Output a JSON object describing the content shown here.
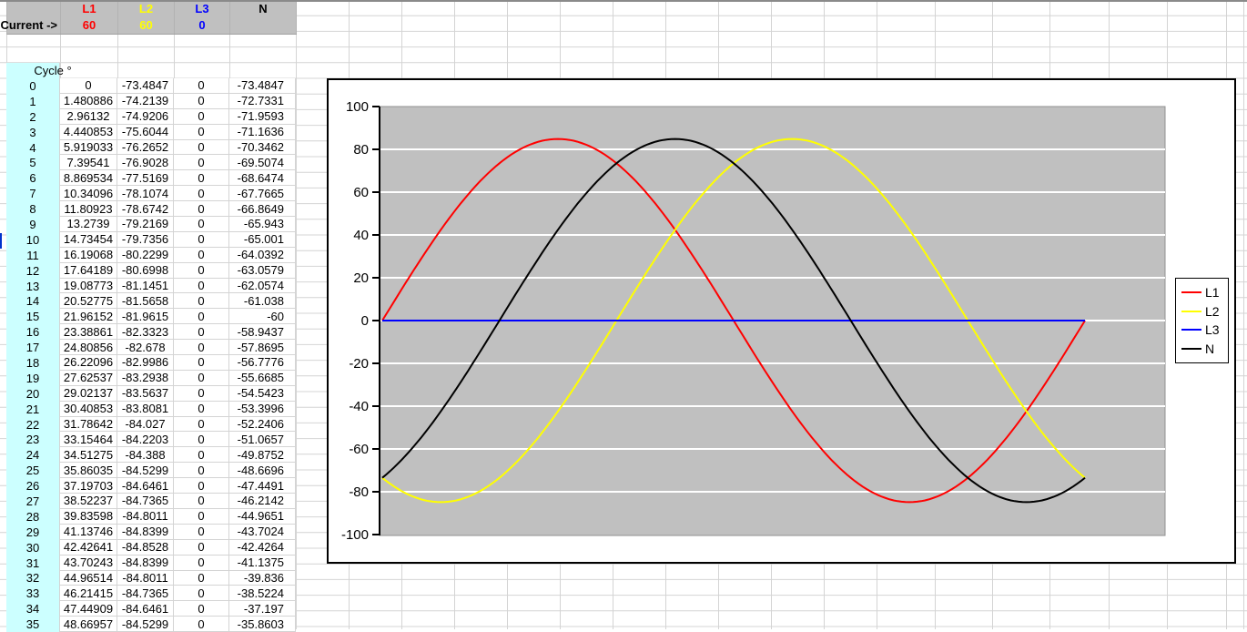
{
  "colors": {
    "header_bg": "#C0C0C0",
    "cycle_bg": "#CCFFFF",
    "grid_line": "#d4d4d4",
    "plot_bg": "#C0C0C0",
    "plot_gridline": "#ffffff"
  },
  "header": {
    "current_label": "Current ->",
    "phases": [
      {
        "label": "L1",
        "value": "60",
        "color": "#FF0000"
      },
      {
        "label": "L2",
        "value": "60",
        "color": "#FFFF00"
      },
      {
        "label": "L3",
        "value": "0",
        "color": "#0000FF"
      },
      {
        "label": "N",
        "value": "",
        "color": "#000000"
      }
    ]
  },
  "table": {
    "cycle_header": "Cycle °",
    "columns": [
      "Cycle °",
      "L1",
      "L2",
      "L3",
      "N"
    ],
    "rows": [
      [
        "0",
        "0",
        "-73.4847",
        "0",
        "-73.4847"
      ],
      [
        "1",
        "1.480886",
        "-74.2139",
        "0",
        "-72.7331"
      ],
      [
        "2",
        "2.96132",
        "-74.9206",
        "0",
        "-71.9593"
      ],
      [
        "3",
        "4.440853",
        "-75.6044",
        "0",
        "-71.1636"
      ],
      [
        "4",
        "5.919033",
        "-76.2652",
        "0",
        "-70.3462"
      ],
      [
        "5",
        "7.39541",
        "-76.9028",
        "0",
        "-69.5074"
      ],
      [
        "6",
        "8.869534",
        "-77.5169",
        "0",
        "-68.6474"
      ],
      [
        "7",
        "10.34096",
        "-78.1074",
        "0",
        "-67.7665"
      ],
      [
        "8",
        "11.80923",
        "-78.6742",
        "0",
        "-66.8649"
      ],
      [
        "9",
        "13.2739",
        "-79.2169",
        "0",
        "-65.943"
      ],
      [
        "10",
        "14.73454",
        "-79.7356",
        "0",
        "-65.001"
      ],
      [
        "11",
        "16.19068",
        "-80.2299",
        "0",
        "-64.0392"
      ],
      [
        "12",
        "17.64189",
        "-80.6998",
        "0",
        "-63.0579"
      ],
      [
        "13",
        "19.08773",
        "-81.1451",
        "0",
        "-62.0574"
      ],
      [
        "14",
        "20.52775",
        "-81.5658",
        "0",
        "-61.038"
      ],
      [
        "15",
        "21.96152",
        "-81.9615",
        "0",
        "-60"
      ],
      [
        "16",
        "23.38861",
        "-82.3323",
        "0",
        "-58.9437"
      ],
      [
        "17",
        "24.80856",
        "-82.678",
        "0",
        "-57.8695"
      ],
      [
        "18",
        "26.22096",
        "-82.9986",
        "0",
        "-56.7776"
      ],
      [
        "19",
        "27.62537",
        "-83.2938",
        "0",
        "-55.6685"
      ],
      [
        "20",
        "29.02137",
        "-83.5637",
        "0",
        "-54.5423"
      ],
      [
        "21",
        "30.40853",
        "-83.8081",
        "0",
        "-53.3996"
      ],
      [
        "22",
        "31.78642",
        "-84.027",
        "0",
        "-52.2406"
      ],
      [
        "23",
        "33.15464",
        "-84.2203",
        "0",
        "-51.0657"
      ],
      [
        "24",
        "34.51275",
        "-84.388",
        "0",
        "-49.8752"
      ],
      [
        "25",
        "35.86035",
        "-84.5299",
        "0",
        "-48.6696"
      ],
      [
        "26",
        "37.19703",
        "-84.6461",
        "0",
        "-47.4491"
      ],
      [
        "27",
        "38.52237",
        "-84.7365",
        "0",
        "-46.2142"
      ],
      [
        "28",
        "39.83598",
        "-84.8011",
        "0",
        "-44.9651"
      ],
      [
        "29",
        "41.13746",
        "-84.8399",
        "0",
        "-43.7024"
      ],
      [
        "30",
        "42.42641",
        "-84.8528",
        "0",
        "-42.4264"
      ],
      [
        "31",
        "43.70243",
        "-84.8399",
        "0",
        "-41.1375"
      ],
      [
        "32",
        "44.96514",
        "-84.8011",
        "0",
        "-39.836"
      ],
      [
        "33",
        "46.21415",
        "-84.7365",
        "0",
        "-38.5224"
      ],
      [
        "34",
        "47.44909",
        "-84.6461",
        "0",
        "-37.197"
      ],
      [
        "35",
        "48.66957",
        "-84.5299",
        "0",
        "-35.8603"
      ]
    ]
  },
  "chart_data": {
    "type": "line",
    "title": "",
    "xlabel": "",
    "ylabel": "",
    "x_range_deg": [
      0,
      360
    ],
    "ylim": [
      -100,
      100
    ],
    "y_ticks": [
      100,
      80,
      60,
      40,
      20,
      0,
      -20,
      -40,
      -60,
      -80,
      -100
    ],
    "grid": true,
    "plot_bg": "#C0C0C0",
    "gridline_color": "#ffffff",
    "legend_position": "right",
    "series": [
      {
        "name": "L1",
        "color": "#FF0000",
        "amplitude": 84.8528,
        "phase_deg": 0,
        "formula": "84.8528*sin(theta)"
      },
      {
        "name": "L2",
        "color": "#FFFF00",
        "amplitude": 84.8528,
        "phase_deg": -120,
        "formula": "84.8528*sin(theta-120)"
      },
      {
        "name": "L3",
        "color": "#0000FF",
        "amplitude": 0,
        "phase_deg": 120,
        "formula": "0"
      },
      {
        "name": "N",
        "color": "#000000",
        "amplitude": 84.8528,
        "phase_deg": -60,
        "formula": "84.8528*sin(theta-60)"
      }
    ]
  }
}
